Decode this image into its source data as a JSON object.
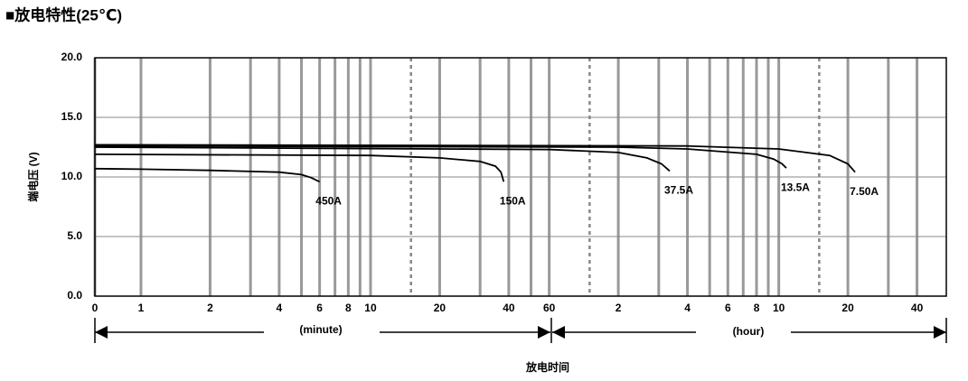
{
  "chart_data": {
    "type": "line",
    "title": "■放电特性(25℃)",
    "y_label": "端电压 (V)",
    "x_label": "放电时间",
    "x_group_labels": [
      "(minute)",
      "(hour)"
    ],
    "log_x": true,
    "xlim": [
      0.63,
      3220
    ],
    "xticks": [
      0,
      1,
      2,
      4,
      6,
      8,
      10,
      20,
      40,
      60,
      {
        "value": 120,
        "label": "2"
      },
      {
        "value": 240,
        "label": "4"
      },
      {
        "value": 360,
        "label": "6"
      },
      {
        "value": 480,
        "label": "8"
      },
      {
        "value": 600,
        "label": "10"
      },
      {
        "value": 1200,
        "label": "20"
      },
      {
        "value": 2400,
        "label": "40"
      }
    ],
    "x_minor_grid": [
      3,
      5,
      7,
      9,
      30,
      50,
      180,
      300,
      420,
      540,
      1800
    ],
    "x_dotted_grid": [
      15,
      90,
      900
    ],
    "ylim": [
      0,
      20
    ],
    "yticks": [
      {
        "value": 0,
        "label": "0.0"
      },
      {
        "value": 5,
        "label": "5.0"
      },
      {
        "value": 10,
        "label": "10.0"
      },
      {
        "value": 15,
        "label": "15.0"
      },
      {
        "value": 20,
        "label": "20.0"
      }
    ],
    "grid": true,
    "series": [
      {
        "name": "450A",
        "color": "#000000",
        "x": [
          0,
          1,
          2,
          4,
          5,
          5.5,
          6
        ],
        "values": [
          10.7,
          10.65,
          10.55,
          10.4,
          10.2,
          9.95,
          9.6
        ]
      },
      {
        "name": "150A",
        "color": "#000000",
        "x": [
          0,
          10,
          20,
          30,
          35,
          37,
          38
        ],
        "values": [
          11.9,
          11.8,
          11.6,
          11.3,
          10.9,
          10.4,
          9.6
        ]
      },
      {
        "name": "37.5A",
        "color": "#000000",
        "x": [
          0,
          60,
          120,
          160,
          185,
          201
        ],
        "values": [
          12.5,
          12.3,
          12.05,
          11.6,
          11.1,
          10.5
        ]
      },
      {
        "name": "13.5A",
        "color": "#000000",
        "x": [
          0,
          120,
          240,
          480,
          570,
          620,
          647
        ],
        "values": [
          12.6,
          12.5,
          12.35,
          11.9,
          11.5,
          11.1,
          10.75
        ]
      },
      {
        "name": "7.50A",
        "color": "#000000",
        "x": [
          0,
          240,
          600,
          1000,
          1200,
          1290
        ],
        "values": [
          12.7,
          12.6,
          12.35,
          11.8,
          11.1,
          10.4
        ]
      }
    ]
  }
}
